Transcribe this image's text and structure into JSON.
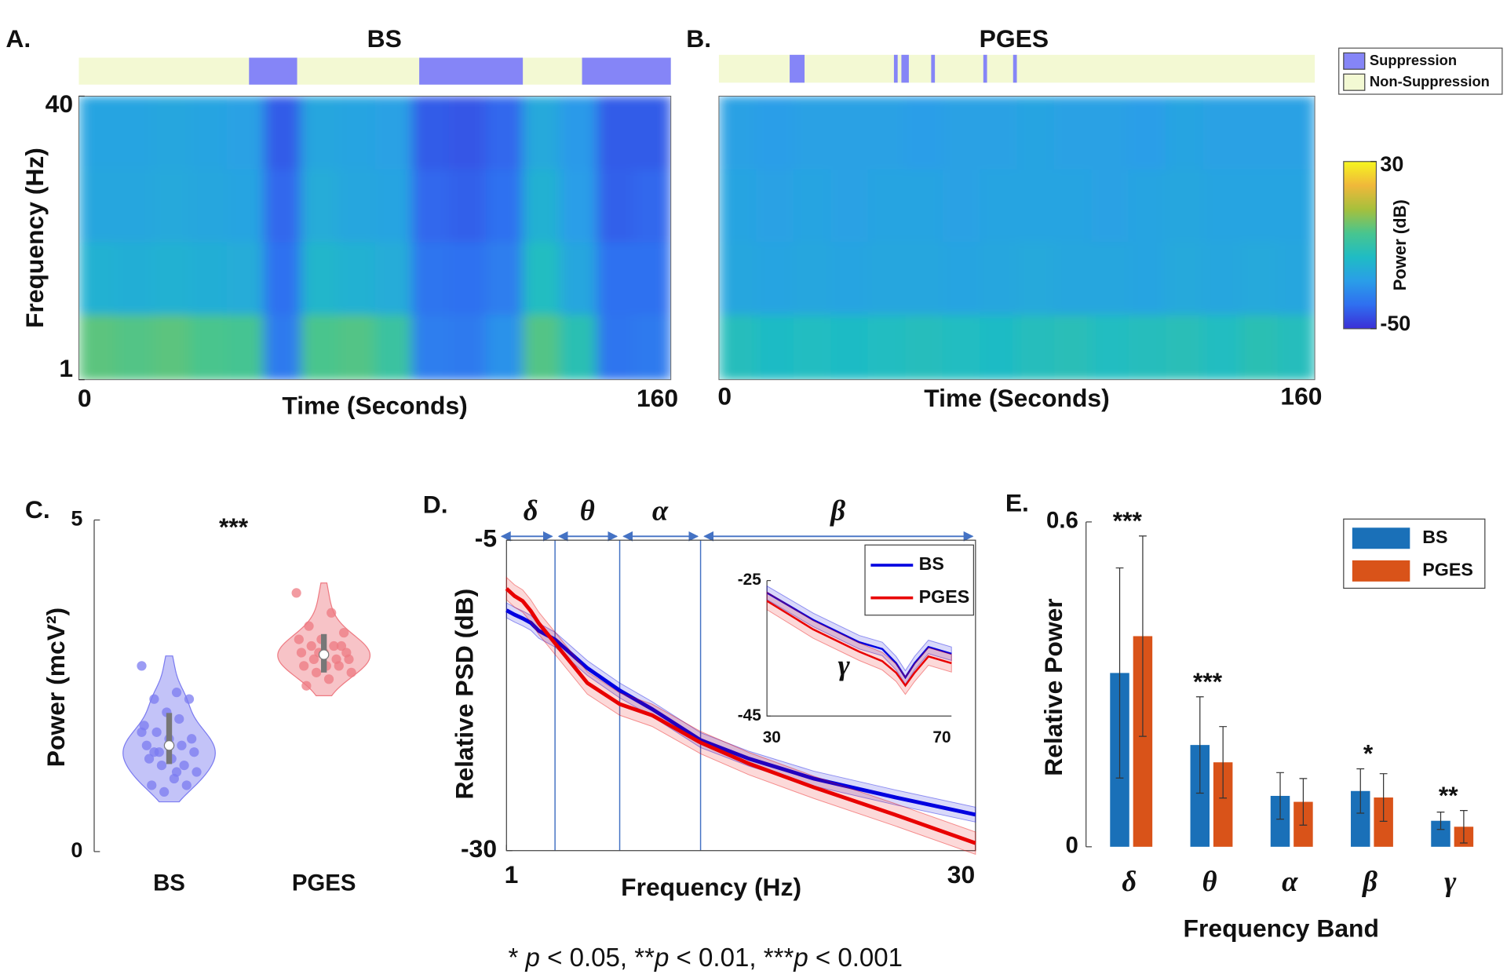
{
  "chart_data": [
    {
      "type": "heatmap",
      "panel_label": "A.",
      "title": "BS",
      "x_label": "Time (Seconds)",
      "y_label": "Frequency (Hz)",
      "xlim": [
        0,
        160
      ],
      "xticks": [
        0,
        160
      ],
      "ylim": [
        1,
        40
      ],
      "yticks": [
        1,
        40
      ],
      "x_bins": [
        0,
        10,
        20,
        30,
        40,
        50,
        60,
        70,
        80,
        90,
        100,
        110,
        120,
        130,
        140,
        150,
        160
      ],
      "y_bins": [
        1,
        10,
        20,
        30,
        40
      ],
      "z": [
        [
          -2,
          -3,
          -2,
          -4,
          -5,
          -36,
          -4,
          -3,
          -8,
          -35,
          -36,
          -30,
          -3,
          -12,
          -37,
          -36
        ],
        [
          -20,
          -21,
          -20,
          -21,
          -22,
          -38,
          -18,
          -20,
          -22,
          -37,
          -38,
          -35,
          -15,
          -24,
          -38,
          -38
        ],
        [
          -24,
          -24,
          -23,
          -24,
          -25,
          -40,
          -22,
          -24,
          -25,
          -40,
          -41,
          -38,
          -20,
          -27,
          -41,
          -40
        ],
        [
          -25,
          -25,
          -24,
          -25,
          -26,
          -42,
          -24,
          -25,
          -26,
          -42,
          -43,
          -40,
          -23,
          -28,
          -42,
          -42
        ]
      ],
      "suppression": [
        [
          46,
          59
        ],
        [
          92,
          120
        ],
        [
          136,
          160
        ]
      ],
      "state_legend": [
        {
          "name": "Suppression",
          "color": "#8585f7"
        },
        {
          "name": "Non-Suppression",
          "color": "#f3f9d3"
        }
      ],
      "colorbar": {
        "label": "Power (dB)",
        "clim": [
          -50,
          30
        ],
        "ticks": [
          -50,
          30
        ],
        "colormap": [
          "#3b2fd6",
          "#2f6ff0",
          "#2a9ee8",
          "#1fbcc4",
          "#48c58f",
          "#a6c03c",
          "#f0b83a",
          "#f6f51f"
        ]
      }
    },
    {
      "type": "heatmap",
      "panel_label": "B.",
      "title": "PGES",
      "x_label": "Time (Seconds)",
      "xlim": [
        0,
        160
      ],
      "xticks": [
        0,
        160
      ],
      "ylim": [
        1,
        40
      ],
      "x_bins": [
        0,
        10,
        20,
        30,
        40,
        50,
        60,
        70,
        80,
        90,
        100,
        110,
        120,
        130,
        140,
        150,
        160
      ],
      "y_bins": [
        1,
        10,
        20,
        30,
        40
      ],
      "z": [
        [
          -14,
          -16,
          -15,
          -16,
          -15,
          -14,
          -15,
          -16,
          -14,
          -13,
          -15,
          -14,
          -13,
          -15,
          -12,
          -14
        ],
        [
          -24,
          -25,
          -24,
          -25,
          -24,
          -24,
          -25,
          -24,
          -23,
          -24,
          -24,
          -25,
          -23,
          -24,
          -23,
          -24
        ],
        [
          -25,
          -26,
          -25,
          -26,
          -25,
          -25,
          -26,
          -25,
          -25,
          -25,
          -26,
          -25,
          -24,
          -25,
          -25,
          -25
        ],
        [
          -26,
          -27,
          -26,
          -26,
          -26,
          -27,
          -26,
          -26,
          -25,
          -26,
          -26,
          -27,
          -25,
          -26,
          -26,
          -26
        ]
      ],
      "suppression": [
        [
          19,
          23
        ],
        [
          47,
          48
        ],
        [
          49,
          51
        ],
        [
          57,
          58
        ],
        [
          71,
          72
        ],
        [
          79,
          80
        ]
      ]
    },
    {
      "type": "violin",
      "panel_label": "C.",
      "y_label": "Power (mcV²)",
      "ylim": [
        0,
        5
      ],
      "yticks": [
        0,
        5
      ],
      "categories": [
        "BS",
        "PGES"
      ],
      "annotation": "***",
      "groups": [
        {
          "color": "#7b7bf0",
          "median": 1.6,
          "q1": 1.32,
          "q3": 2.09,
          "values": [
            2.8,
            2.4,
            2.3,
            2.3,
            2.1,
            1.9,
            2.0,
            1.8,
            1.7,
            1.7,
            1.6,
            1.6,
            1.5,
            1.5,
            1.4,
            1.4,
            1.3,
            1.3,
            1.2,
            1.1,
            1.0,
            1.0,
            0.9,
            1.8,
            1.2,
            1.5
          ]
        },
        {
          "color": "#ee7a82",
          "median": 2.97,
          "q1": 2.7,
          "q3": 3.28,
          "values": [
            3.9,
            3.6,
            3.4,
            3.3,
            3.2,
            3.2,
            3.1,
            3.1,
            3.0,
            3.0,
            3.0,
            2.9,
            2.9,
            2.9,
            2.8,
            2.8,
            2.8,
            2.7,
            2.7,
            2.6,
            2.5,
            3.1,
            3.0
          ]
        }
      ]
    },
    {
      "type": "line",
      "panel_label": "D.",
      "x_label": "Frequency (Hz)",
      "y_label": "Relative PSD (dB)",
      "xlim": [
        1,
        30
      ],
      "xticks": [
        1,
        30
      ],
      "ylim": [
        -30,
        -5
      ],
      "yticks": [
        -30,
        -5
      ],
      "legend": "upper right",
      "bands": [
        {
          "label": "δ",
          "range": [
            1,
            4
          ]
        },
        {
          "label": "θ",
          "range": [
            4,
            8
          ]
        },
        {
          "label": "α",
          "range": [
            8,
            13
          ]
        },
        {
          "label": "β",
          "range": [
            13,
            30
          ]
        }
      ],
      "x": [
        1,
        1.5,
        2,
        2.5,
        3,
        4,
        6,
        8,
        10,
        13,
        16,
        20,
        25,
        30
      ],
      "series": [
        {
          "name": "BS",
          "color": "#0000e0",
          "error": 0.6,
          "values": [
            -10.65,
            -11.0,
            -11.3,
            -11.65,
            -12.3,
            -13.0,
            -15.3,
            -17.1,
            -18.6,
            -21.1,
            -22.6,
            -24.2,
            -25.7,
            -27.1
          ]
        },
        {
          "name": "PGES",
          "color": "#e80000",
          "error": 0.9,
          "values": [
            -8.9,
            -9.5,
            -9.9,
            -10.7,
            -11.7,
            -13.3,
            -16.5,
            -18.2,
            -19.1,
            -21.3,
            -23.0,
            -24.9,
            -27.1,
            -29.4
          ]
        }
      ],
      "inset": {
        "label": "γ",
        "xlim": [
          30,
          70
        ],
        "xticks": [
          30,
          70
        ],
        "ylim": [
          -45,
          -25
        ],
        "yticks": [
          -45,
          -25
        ],
        "x": [
          30,
          40,
          50,
          55,
          58,
          60,
          62,
          65,
          70
        ],
        "series": [
          {
            "error": 1.0,
            "values": [
              -26.8,
              -30.8,
              -34.1,
              -35.1,
              -37.2,
              -39.3,
              -37.2,
              -34.8,
              -35.8
            ]
          },
          {
            "error": 1.3,
            "values": [
              -28.0,
              -32.2,
              -35.5,
              -36.9,
              -38.6,
              -40.5,
              -38.6,
              -36.2,
              -37.2
            ]
          }
        ]
      }
    },
    {
      "type": "bar",
      "panel_label": "E.",
      "x_label": "Frequency Band",
      "y_label": "Relative Power",
      "ylim": [
        0,
        0.6
      ],
      "yticks": [
        0,
        0.6
      ],
      "legend": "upper right",
      "categories": [
        "δ",
        "θ",
        "α",
        "β",
        "γ"
      ],
      "significance": [
        "***",
        "***",
        null,
        "*",
        "**"
      ],
      "series": [
        {
          "name": "BS",
          "color": "#1a70b8",
          "values": [
            0.321,
            0.188,
            0.094,
            0.103,
            0.048
          ],
          "errors": [
            0.194,
            0.089,
            0.043,
            0.041,
            0.016
          ]
        },
        {
          "name": "PGES",
          "color": "#d95319",
          "values": [
            0.389,
            0.156,
            0.083,
            0.091,
            0.037
          ],
          "errors": [
            0.185,
            0.066,
            0.043,
            0.044,
            0.03
          ]
        }
      ]
    }
  ],
  "footnote": [
    {
      "text": "* "
    },
    {
      "text": "p",
      "italic": true
    },
    {
      "text": " < 0.05, **"
    },
    {
      "text": "p",
      "italic": true
    },
    {
      "text": " < 0.01, ***"
    },
    {
      "text": "p",
      "italic": true
    },
    {
      "text": " < 0.001"
    }
  ]
}
